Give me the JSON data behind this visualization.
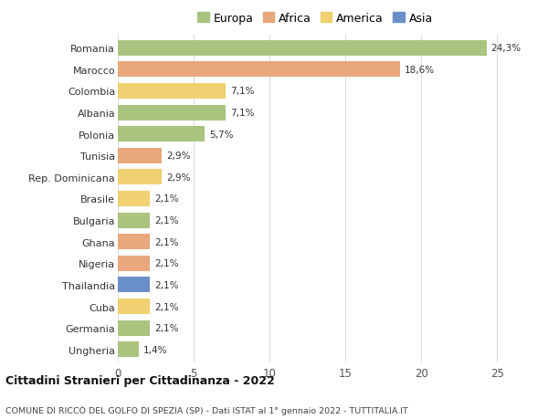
{
  "countries": [
    "Romania",
    "Marocco",
    "Colombia",
    "Albania",
    "Polonia",
    "Tunisia",
    "Rep. Dominicana",
    "Brasile",
    "Bulgaria",
    "Ghana",
    "Nigeria",
    "Thailandia",
    "Cuba",
    "Germania",
    "Ungheria"
  ],
  "values": [
    24.3,
    18.6,
    7.1,
    7.1,
    5.7,
    2.9,
    2.9,
    2.1,
    2.1,
    2.1,
    2.1,
    2.1,
    2.1,
    2.1,
    1.4
  ],
  "labels": [
    "24,3%",
    "18,6%",
    "7,1%",
    "7,1%",
    "5,7%",
    "2,9%",
    "2,9%",
    "2,1%",
    "2,1%",
    "2,1%",
    "2,1%",
    "2,1%",
    "2,1%",
    "2,1%",
    "1,4%"
  ],
  "continents": [
    "Europa",
    "Africa",
    "America",
    "Europa",
    "Europa",
    "Africa",
    "America",
    "America",
    "Europa",
    "Africa",
    "Africa",
    "Asia",
    "America",
    "Europa",
    "Europa"
  ],
  "continent_colors": {
    "Europa": "#a8c47f",
    "Africa": "#e8a87c",
    "America": "#f0d070",
    "Asia": "#6b8fc9"
  },
  "legend_order": [
    "Europa",
    "Africa",
    "America",
    "Asia"
  ],
  "title": "Cittadini Stranieri per Cittadinanza - 2022",
  "subtitle": "COMUNE DI RICCÒ DEL GOLFO DI SPEZIA (SP) - Dati ISTAT al 1° gennaio 2022 - TUTTITALIA.IT",
  "xlim": [
    0,
    26
  ],
  "xticks": [
    0,
    5,
    10,
    15,
    20,
    25
  ],
  "background_color": "#ffffff",
  "bar_height": 0.72,
  "grid_color": "#dddddd"
}
